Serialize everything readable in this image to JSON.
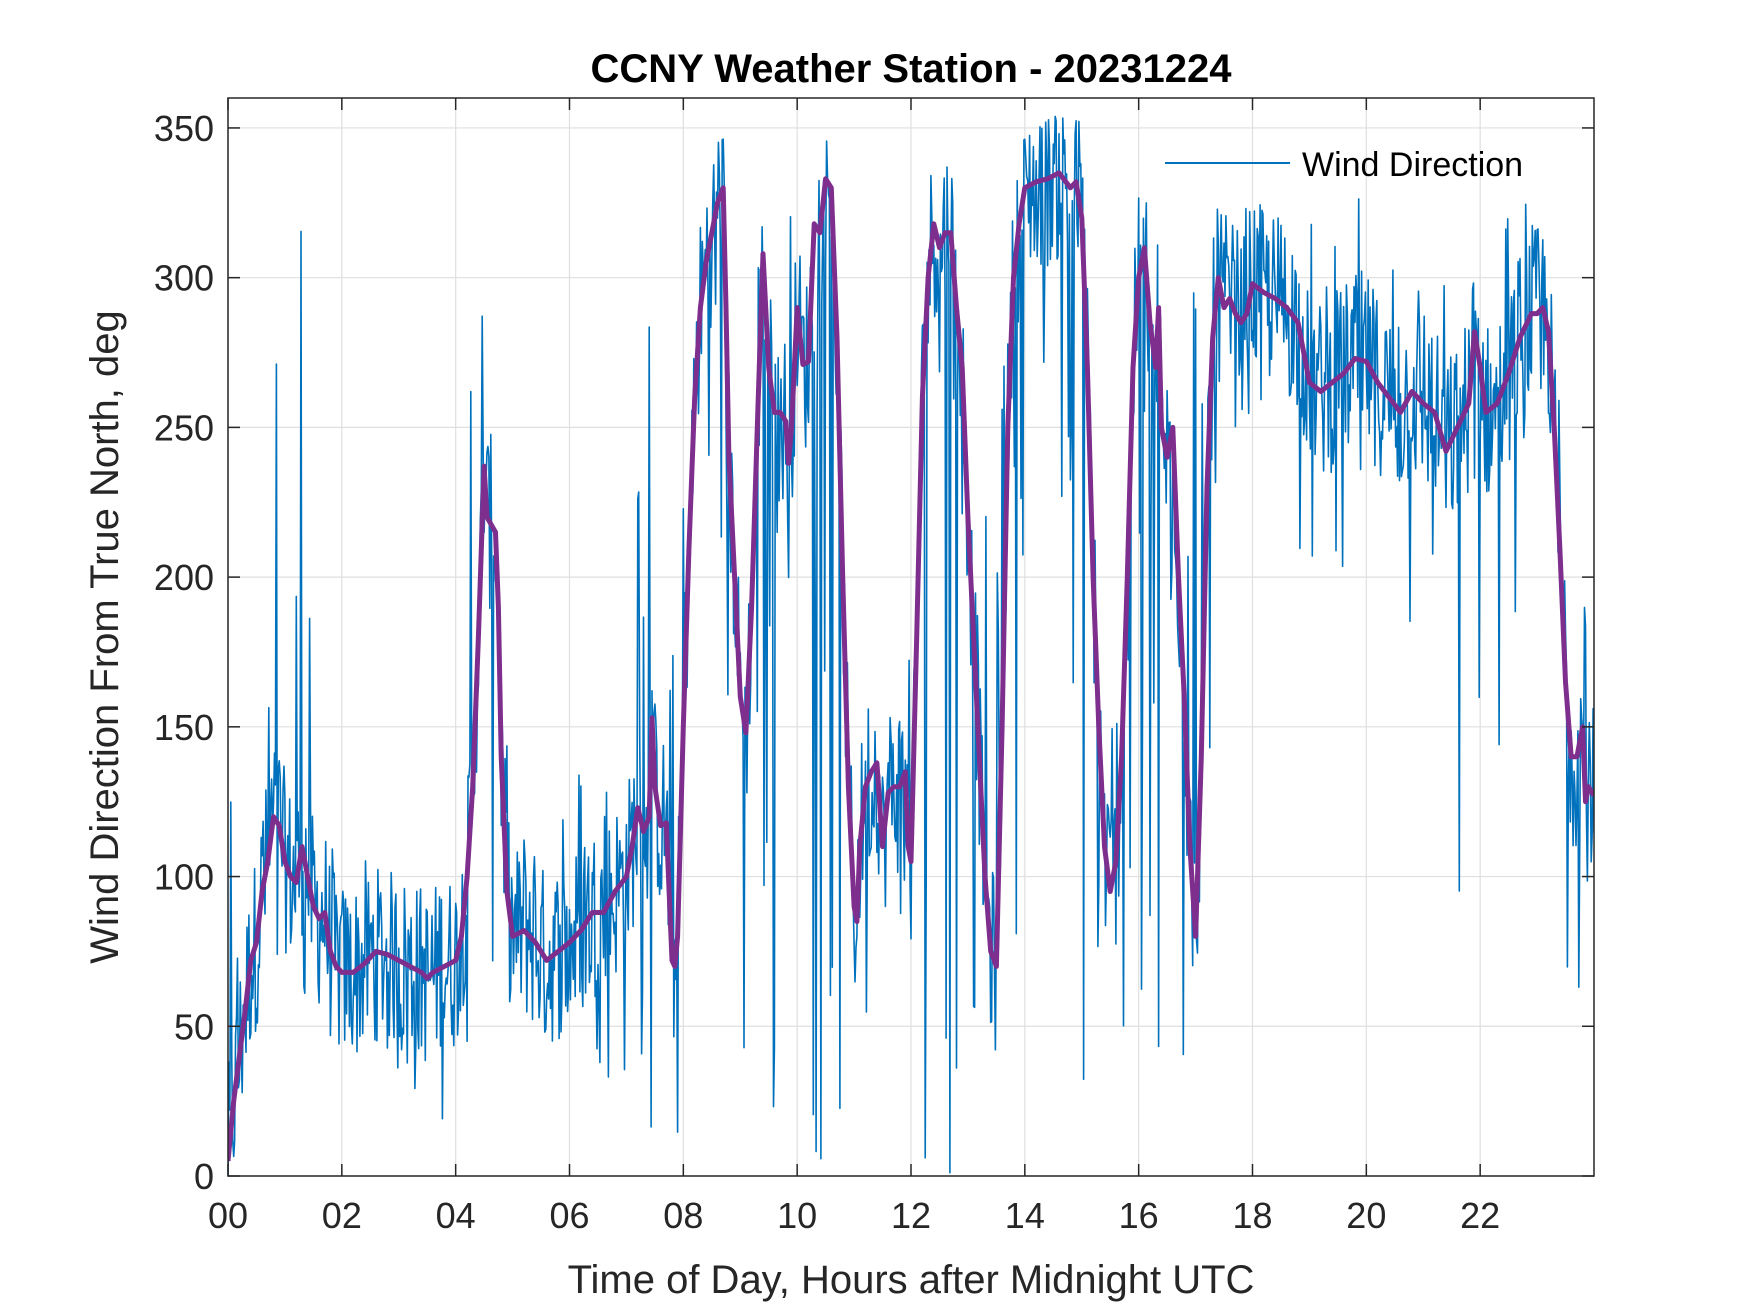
{
  "chart_data": {
    "type": "line",
    "title": "CCNY Weather Station - 20231224",
    "xlabel": "Time of Day, Hours after Midnight UTC",
    "ylabel": "Wind Direction From True North, deg",
    "xlim": [
      0,
      24
    ],
    "ylim": [
      0,
      360
    ],
    "xticks": [
      0,
      2,
      4,
      6,
      8,
      10,
      12,
      14,
      16,
      18,
      20,
      22
    ],
    "xtick_labels": [
      "00",
      "02",
      "04",
      "06",
      "08",
      "10",
      "12",
      "14",
      "16",
      "18",
      "20",
      "22"
    ],
    "yticks": [
      0,
      50,
      100,
      150,
      200,
      250,
      300,
      350
    ],
    "ytick_labels": [
      "0",
      "50",
      "100",
      "150",
      "200",
      "250",
      "300",
      "350"
    ],
    "grid": true,
    "legend_position": "top-right",
    "series": [
      {
        "name": "Wind Direction",
        "color": "#0072BD",
        "style": "thin",
        "noise_envelope": [
          [
            0.0,
            0,
            140
          ],
          [
            0.5,
            30,
            150
          ],
          [
            0.9,
            0,
            310
          ],
          [
            1.3,
            20,
            355
          ],
          [
            1.5,
            50,
            130
          ],
          [
            2.0,
            40,
            110
          ],
          [
            3.0,
            30,
            100
          ],
          [
            4.0,
            15,
            110
          ],
          [
            4.2,
            0,
            330
          ],
          [
            4.5,
            20,
            352
          ],
          [
            4.8,
            40,
            240
          ],
          [
            5.0,
            40,
            150
          ],
          [
            6.0,
            30,
            140
          ],
          [
            7.0,
            30,
            160
          ],
          [
            7.3,
            0,
            352
          ],
          [
            7.8,
            10,
            200
          ],
          [
            8.0,
            0,
            345
          ],
          [
            8.6,
            240,
            345
          ],
          [
            9.0,
            0,
            350
          ],
          [
            10.5,
            0,
            352
          ],
          [
            11.0,
            30,
            160
          ],
          [
            11.6,
            30,
            160
          ],
          [
            12.0,
            0,
            352
          ],
          [
            12.8,
            0,
            352
          ],
          [
            13.4,
            40,
            200
          ],
          [
            13.6,
            0,
            340
          ],
          [
            14.5,
            290,
            354
          ],
          [
            15.0,
            0,
            352
          ],
          [
            15.6,
            40,
            160
          ],
          [
            16.0,
            0,
            340
          ],
          [
            16.5,
            0,
            320
          ],
          [
            17.0,
            0,
            340
          ],
          [
            17.5,
            250,
            330
          ],
          [
            18.0,
            250,
            325
          ],
          [
            19.0,
            200,
            320
          ],
          [
            20.0,
            180,
            330
          ],
          [
            21.0,
            170,
            315
          ],
          [
            22.0,
            0,
            320
          ],
          [
            23.0,
            220,
            355
          ],
          [
            23.4,
            40,
            330
          ],
          [
            24.0,
            60,
            200
          ]
        ]
      },
      {
        "name": "",
        "color": "#7E2F8E",
        "style": "thick",
        "points": [
          [
            0.0,
            5
          ],
          [
            0.1,
            25
          ],
          [
            0.2,
            40
          ],
          [
            0.3,
            55
          ],
          [
            0.4,
            72
          ],
          [
            0.5,
            78
          ],
          [
            0.6,
            95
          ],
          [
            0.7,
            105
          ],
          [
            0.8,
            120
          ],
          [
            0.9,
            117
          ],
          [
            1.0,
            105
          ],
          [
            1.1,
            100
          ],
          [
            1.2,
            98
          ],
          [
            1.3,
            110
          ],
          [
            1.4,
            100
          ],
          [
            1.5,
            90
          ],
          [
            1.6,
            86
          ],
          [
            1.7,
            88
          ],
          [
            1.8,
            75
          ],
          [
            1.9,
            70
          ],
          [
            2.0,
            68
          ],
          [
            2.2,
            68
          ],
          [
            2.4,
            71
          ],
          [
            2.6,
            75
          ],
          [
            2.8,
            74
          ],
          [
            3.0,
            72
          ],
          [
            3.2,
            70
          ],
          [
            3.4,
            68
          ],
          [
            3.5,
            66
          ],
          [
            3.6,
            68
          ],
          [
            3.8,
            70
          ],
          [
            4.0,
            72
          ],
          [
            4.1,
            80
          ],
          [
            4.2,
            100
          ],
          [
            4.3,
            130
          ],
          [
            4.4,
            180
          ],
          [
            4.5,
            237
          ],
          [
            4.55,
            220
          ],
          [
            4.7,
            215
          ],
          [
            4.75,
            190
          ],
          [
            4.8,
            140
          ],
          [
            4.9,
            95
          ],
          [
            5.0,
            80
          ],
          [
            5.2,
            82
          ],
          [
            5.4,
            78
          ],
          [
            5.6,
            72
          ],
          [
            5.8,
            75
          ],
          [
            6.0,
            78
          ],
          [
            6.2,
            82
          ],
          [
            6.4,
            88
          ],
          [
            6.6,
            88
          ],
          [
            6.8,
            95
          ],
          [
            7.0,
            100
          ],
          [
            7.1,
            110
          ],
          [
            7.2,
            123
          ],
          [
            7.3,
            115
          ],
          [
            7.4,
            120
          ],
          [
            7.45,
            153
          ],
          [
            7.5,
            130
          ],
          [
            7.6,
            117
          ],
          [
            7.7,
            118
          ],
          [
            7.75,
            95
          ],
          [
            7.8,
            72
          ],
          [
            7.85,
            70
          ],
          [
            7.9,
            80
          ],
          [
            8.0,
            150
          ],
          [
            8.1,
            210
          ],
          [
            8.2,
            260
          ],
          [
            8.3,
            290
          ],
          [
            8.4,
            305
          ],
          [
            8.5,
            315
          ],
          [
            8.6,
            325
          ],
          [
            8.7,
            330
          ],
          [
            8.75,
            290
          ],
          [
            8.8,
            240
          ],
          [
            8.9,
            200
          ],
          [
            9.0,
            160
          ],
          [
            9.1,
            148
          ],
          [
            9.2,
            190
          ],
          [
            9.3,
            250
          ],
          [
            9.4,
            308
          ],
          [
            9.5,
            270
          ],
          [
            9.6,
            255
          ],
          [
            9.7,
            255
          ],
          [
            9.8,
            252
          ],
          [
            9.85,
            238
          ],
          [
            9.9,
            250
          ],
          [
            10.0,
            290
          ],
          [
            10.1,
            271
          ],
          [
            10.2,
            272
          ],
          [
            10.3,
            318
          ],
          [
            10.4,
            315
          ],
          [
            10.5,
            333
          ],
          [
            10.6,
            330
          ],
          [
            10.7,
            280
          ],
          [
            10.8,
            200
          ],
          [
            10.9,
            130
          ],
          [
            11.0,
            90
          ],
          [
            11.05,
            85
          ],
          [
            11.1,
            110
          ],
          [
            11.2,
            130
          ],
          [
            11.3,
            135
          ],
          [
            11.4,
            138
          ],
          [
            11.5,
            110
          ],
          [
            11.6,
            128
          ],
          [
            11.7,
            130
          ],
          [
            11.8,
            130
          ],
          [
            11.9,
            135
          ],
          [
            11.95,
            110
          ],
          [
            12.0,
            105
          ],
          [
            12.1,
            180
          ],
          [
            12.2,
            260
          ],
          [
            12.3,
            300
          ],
          [
            12.4,
            318
          ],
          [
            12.5,
            310
          ],
          [
            12.6,
            315
          ],
          [
            12.7,
            315
          ],
          [
            12.8,
            290
          ],
          [
            12.9,
            270
          ],
          [
            13.0,
            220
          ],
          [
            13.1,
            180
          ],
          [
            13.2,
            140
          ],
          [
            13.3,
            100
          ],
          [
            13.4,
            75
          ],
          [
            13.5,
            70
          ],
          [
            13.6,
            150
          ],
          [
            13.7,
            250
          ],
          [
            13.8,
            300
          ],
          [
            13.9,
            318
          ],
          [
            14.0,
            330
          ],
          [
            14.2,
            332
          ],
          [
            14.4,
            333
          ],
          [
            14.6,
            335
          ],
          [
            14.8,
            330
          ],
          [
            14.9,
            332
          ],
          [
            15.0,
            320
          ],
          [
            15.1,
            270
          ],
          [
            15.2,
            200
          ],
          [
            15.3,
            150
          ],
          [
            15.4,
            110
          ],
          [
            15.5,
            95
          ],
          [
            15.6,
            105
          ],
          [
            15.7,
            140
          ],
          [
            15.8,
            200
          ],
          [
            15.9,
            270
          ],
          [
            16.0,
            300
          ],
          [
            16.1,
            310
          ],
          [
            16.2,
            285
          ],
          [
            16.3,
            270
          ],
          [
            16.35,
            290
          ],
          [
            16.4,
            250
          ],
          [
            16.5,
            240
          ],
          [
            16.6,
            250
          ],
          [
            16.7,
            200
          ],
          [
            16.8,
            160
          ],
          [
            16.9,
            110
          ],
          [
            17.0,
            80
          ],
          [
            17.1,
            140
          ],
          [
            17.2,
            230
          ],
          [
            17.3,
            280
          ],
          [
            17.4,
            300
          ],
          [
            17.5,
            290
          ],
          [
            17.6,
            293
          ],
          [
            17.7,
            288
          ],
          [
            17.8,
            285
          ],
          [
            17.9,
            288
          ],
          [
            18.0,
            298
          ],
          [
            18.2,
            295
          ],
          [
            18.4,
            293
          ],
          [
            18.6,
            290
          ],
          [
            18.8,
            285
          ],
          [
            19.0,
            265
          ],
          [
            19.2,
            262
          ],
          [
            19.4,
            265
          ],
          [
            19.6,
            268
          ],
          [
            19.8,
            273
          ],
          [
            20.0,
            272
          ],
          [
            20.2,
            265
          ],
          [
            20.4,
            260
          ],
          [
            20.6,
            255
          ],
          [
            20.8,
            262
          ],
          [
            21.0,
            258
          ],
          [
            21.2,
            255
          ],
          [
            21.4,
            242
          ],
          [
            21.6,
            250
          ],
          [
            21.8,
            258
          ],
          [
            21.9,
            282
          ],
          [
            22.0,
            270
          ],
          [
            22.1,
            255
          ],
          [
            22.3,
            258
          ],
          [
            22.5,
            268
          ],
          [
            22.7,
            280
          ],
          [
            22.9,
            288
          ],
          [
            23.0,
            288
          ],
          [
            23.1,
            290
          ],
          [
            23.2,
            282
          ],
          [
            23.3,
            250
          ],
          [
            23.4,
            210
          ],
          [
            23.5,
            165
          ],
          [
            23.6,
            140
          ],
          [
            23.7,
            140
          ],
          [
            23.8,
            150
          ],
          [
            23.85,
            125
          ],
          [
            23.9,
            130
          ],
          [
            24.0,
            127
          ]
        ]
      }
    ]
  }
}
